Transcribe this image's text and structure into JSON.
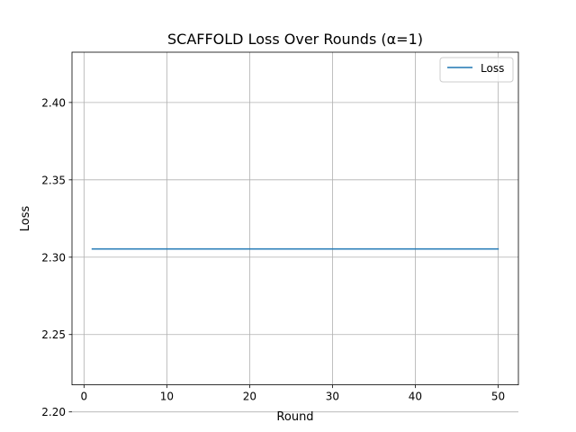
{
  "chart_data": {
    "type": "line",
    "title": "SCAFFOLD Loss Over Rounds (α=1)",
    "xlabel": "Round",
    "ylabel": "Loss",
    "xlim": [
      -1.45,
      52.45
    ],
    "ylim": [
      2.2175,
      2.4325
    ],
    "xticks": [
      0,
      10,
      20,
      30,
      40,
      50
    ],
    "yticks": [
      2.2,
      2.25,
      2.3,
      2.35,
      2.4
    ],
    "xtick_labels": [
      "0",
      "10",
      "20",
      "30",
      "40",
      "50"
    ],
    "ytick_labels": [
      "2.20",
      "2.25",
      "2.30",
      "2.35",
      "2.40"
    ],
    "grid": true,
    "legend_position": "top-right",
    "series": [
      {
        "name": "Loss",
        "color": "#1f77b4",
        "x": [
          1,
          2,
          3,
          4,
          5,
          6,
          7,
          8,
          9,
          10,
          11,
          12,
          13,
          14,
          15,
          16,
          17,
          18,
          19,
          20,
          21,
          22,
          23,
          24,
          25,
          26,
          27,
          28,
          29,
          30,
          31,
          32,
          33,
          34,
          35,
          36,
          37,
          38,
          39,
          40,
          41,
          42,
          43,
          44,
          45,
          46,
          47,
          48,
          49,
          50
        ],
        "y": [
          2.3053,
          2.3053,
          2.3053,
          2.3053,
          2.3053,
          2.3053,
          2.3053,
          2.3053,
          2.3053,
          2.3053,
          2.3053,
          2.3053,
          2.3053,
          2.3053,
          2.3053,
          2.3053,
          2.3053,
          2.3053,
          2.3053,
          2.3053,
          2.3053,
          2.3053,
          2.3053,
          2.3053,
          2.3053,
          2.3053,
          2.3053,
          2.3053,
          2.3053,
          2.3053,
          2.3053,
          2.3053,
          2.3053,
          2.3053,
          2.3053,
          2.3053,
          2.3053,
          2.3053,
          2.3053,
          2.3053,
          2.3053,
          2.3053,
          2.3053,
          2.3053,
          2.3053,
          2.3053,
          2.3053,
          2.3053,
          2.3053,
          2.3053
        ]
      }
    ]
  }
}
